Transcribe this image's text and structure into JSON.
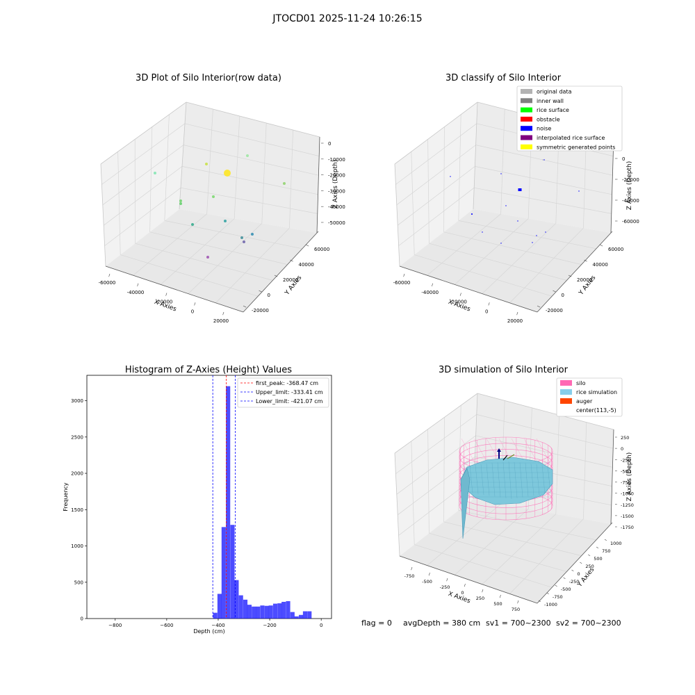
{
  "suptitle": "JTOCD01 2025-11-24 10:26:15",
  "colors": {
    "hist_bar": "#0000ff",
    "first_peak": "#ff0000",
    "limit": "#0000ff",
    "pane": "#f2f2f2",
    "grid": "#d9d9d9"
  },
  "plot_raw": {
    "title": "3D Plot of Silo Interior(row data)",
    "xlabel": "X Axies",
    "ylabel": "Y Axies",
    "zlabel": "Z Axies (Depth)",
    "x_ticks": [
      "-60000",
      "-40000",
      "-20000",
      "0",
      "20000"
    ],
    "y_ticks": [
      "-20000",
      "0",
      "20000",
      "40000",
      "60000"
    ],
    "z_ticks": [
      "-50000",
      "-40000",
      "-30000",
      "-20000",
      "-10000",
      "0"
    ],
    "points": [
      {
        "color": "#7fe5b0",
        "size": 2
      },
      {
        "color": "#c8e040",
        "size": 2
      },
      {
        "color": "#ffe619",
        "size": 5
      },
      {
        "color": "#9be6a0",
        "size": 2
      },
      {
        "color": "#8ed36a",
        "size": 2
      },
      {
        "color": "#78d86c",
        "size": 2
      },
      {
        "color": "#6ed36c",
        "size": 2
      },
      {
        "color": "#5fd068",
        "size": 2
      },
      {
        "color": "#2ea88a",
        "size": 2
      },
      {
        "color": "#2aa0a0",
        "size": 2
      },
      {
        "color": "#2b8bb0",
        "size": 2
      },
      {
        "color": "#3b8c96",
        "size": 2
      },
      {
        "color": "#6a5fa8",
        "size": 2
      },
      {
        "color": "#9b4fb0",
        "size": 2
      }
    ]
  },
  "plot_classify": {
    "title": "3D classify of Silo Interior",
    "xlabel": "X Axies",
    "ylabel": "Y Axies",
    "zlabel": "Z Axies (Depth)",
    "x_ticks": [
      "-60000",
      "-40000",
      "-20000",
      "0",
      "20000"
    ],
    "y_ticks": [
      "-20000",
      "0",
      "20000",
      "40000",
      "60000"
    ],
    "z_ticks": [
      "-60000",
      "-40000",
      "-20000",
      "0"
    ],
    "legend": [
      {
        "label": "original data",
        "color": "#b3b3b3"
      },
      {
        "label": "inner wall",
        "color": "#808080"
      },
      {
        "label": "rice surface",
        "color": "#00ff00"
      },
      {
        "label": "obstacle",
        "color": "#ff0000"
      },
      {
        "label": "noise",
        "color": "#0000ff"
      },
      {
        "label": "interpolated rice surface",
        "color": "#800080"
      },
      {
        "label": "symmetric generated points",
        "color": "#ffff00"
      }
    ],
    "points": [
      {
        "color": "#0000ff",
        "size": 1
      },
      {
        "color": "#0000ff",
        "size": 1
      },
      {
        "color": "#0000ff",
        "size": 3
      },
      {
        "color": "#0000ff",
        "size": 1
      },
      {
        "color": "#0000ff",
        "size": 1
      },
      {
        "color": "#0000ff",
        "size": 1
      },
      {
        "color": "#0000ff",
        "size": 1.5
      },
      {
        "color": "#0000ff",
        "size": 1
      },
      {
        "color": "#0000ff",
        "size": 1
      },
      {
        "color": "#0000ff",
        "size": 1
      },
      {
        "color": "#0000ff",
        "size": 1
      },
      {
        "color": "#0000ff",
        "size": 1
      },
      {
        "color": "#0000ff",
        "size": 1
      },
      {
        "color": "#b3b3b3",
        "size": 1
      }
    ]
  },
  "chart_data": [
    {
      "type": "bar",
      "title": "Histogram of Z-Axies (Height) Values",
      "xlabel": "Depth (cm)",
      "ylabel": "Frequency",
      "xlim": [
        -910,
        40
      ],
      "ylim": [
        0,
        3350
      ],
      "x_ticks": [
        -800,
        -600,
        -400,
        -200,
        0
      ],
      "y_ticks": [
        0,
        500,
        1000,
        1500,
        2000,
        2500,
        3000
      ],
      "bin_width": 16.6,
      "bins_start": [
        -420,
        -403,
        -387,
        -370,
        -353,
        -337,
        -320,
        -303,
        -287,
        -270,
        -254,
        -237,
        -220,
        -204,
        -187,
        -170,
        -154,
        -137,
        -120,
        -104,
        -87,
        -71,
        -54,
        -37,
        -21
      ],
      "values": [
        80,
        340,
        1260,
        3200,
        1290,
        530,
        320,
        260,
        190,
        165,
        165,
        180,
        175,
        180,
        205,
        210,
        230,
        240,
        90,
        30,
        50,
        100,
        100,
        0,
        0
      ],
      "lines": [
        {
          "label": "first_peak: -368.47 cm",
          "x": -368.47,
          "color": "#ff0000"
        },
        {
          "label": "Upper_limit: -333.41 cm",
          "x": -333.41,
          "color": "#0000ff"
        },
        {
          "label": "Lower_limit: -421.07 cm",
          "x": -421.07,
          "color": "#0000ff"
        }
      ],
      "legend_position": "upper-right",
      "grid": false
    }
  ],
  "plot_sim": {
    "title": "3D simulation of Silo Interior",
    "xlabel": "X Axies",
    "ylabel": "Y Axies",
    "zlabel": "Z Axies (Depth)",
    "x_ticks": [
      "-750",
      "-500",
      "-250",
      "0",
      "250",
      "500",
      "750"
    ],
    "y_ticks": [
      "-1000",
      "-750",
      "-500",
      "-250",
      "0",
      "250",
      "500",
      "750",
      "1000"
    ],
    "z_ticks": [
      "-1750",
      "-1500",
      "-1250",
      "-1000",
      "-750",
      "-500",
      "-250",
      "0",
      "250"
    ],
    "legend": [
      {
        "label": "silo",
        "color": "#ff69b4"
      },
      {
        "label": "rice simulation",
        "color": "#87ceeb"
      },
      {
        "label": "auger",
        "color": "#ff4500"
      },
      {
        "label": "center(113,-5)",
        "color": "#ffffff"
      }
    ],
    "silo_color": "#ff69b4",
    "rice_color": "#7ec8dc",
    "rice_edge": "#4a9ab8"
  },
  "footer": {
    "flag": "flag = 0",
    "avg": "avgDepth = 380 cm",
    "sv1": "sv1 = 700~2300",
    "sv2": "sv2 = 700~2300"
  }
}
